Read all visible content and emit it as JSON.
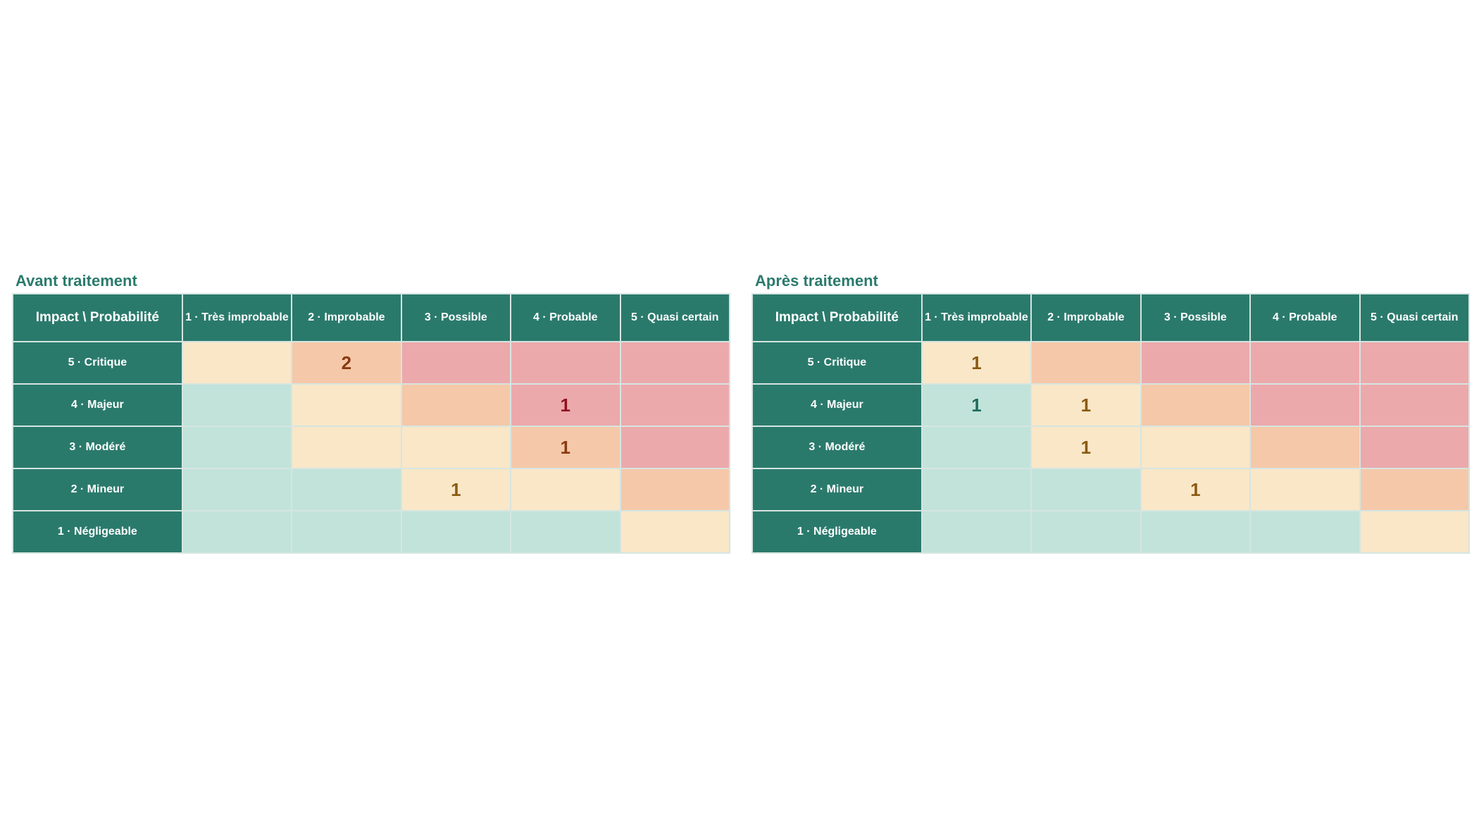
{
  "chart_data": [
    {
      "type": "heatmap",
      "title": "Avant traitement",
      "corner_label": "Impact \\ Probabilité",
      "columns": [
        "1 · Très improbable",
        "2 · Improbable",
        "3 · Possible",
        "4 · Probable",
        "5 · Quasi certain"
      ],
      "rows": [
        "5 · Critique",
        "4 · Majeur",
        "3 · Modéré",
        "2 · Mineur",
        "1 · Négligeable"
      ],
      "levels": [
        [
          "mod",
          "high",
          "crit",
          "crit",
          "crit"
        ],
        [
          "low",
          "mod",
          "high",
          "crit",
          "crit"
        ],
        [
          "low",
          "mod",
          "mod",
          "high",
          "crit"
        ],
        [
          "low",
          "low",
          "mod",
          "mod",
          "high"
        ],
        [
          "low",
          "low",
          "low",
          "low",
          "mod"
        ]
      ],
      "counts": [
        [
          "",
          "2",
          "",
          "",
          ""
        ],
        [
          "",
          "",
          "",
          "1",
          ""
        ],
        [
          "",
          "",
          "",
          "1",
          ""
        ],
        [
          "",
          "",
          "1",
          "",
          ""
        ],
        [
          "",
          "",
          "",
          "",
          ""
        ]
      ]
    },
    {
      "type": "heatmap",
      "title": "Après traitement",
      "corner_label": "Impact \\ Probabilité",
      "columns": [
        "1 · Très improbable",
        "2 · Improbable",
        "3 · Possible",
        "4 · Probable",
        "5 · Quasi certain"
      ],
      "rows": [
        "5 · Critique",
        "4 · Majeur",
        "3 · Modéré",
        "2 · Mineur",
        "1 · Négligeable"
      ],
      "levels": [
        [
          "mod",
          "high",
          "crit",
          "crit",
          "crit"
        ],
        [
          "low",
          "mod",
          "high",
          "crit",
          "crit"
        ],
        [
          "low",
          "mod",
          "mod",
          "high",
          "crit"
        ],
        [
          "low",
          "low",
          "mod",
          "mod",
          "high"
        ],
        [
          "low",
          "low",
          "low",
          "low",
          "mod"
        ]
      ],
      "counts": [
        [
          "1",
          "",
          "",
          "",
          ""
        ],
        [
          "1",
          "1",
          "",
          "",
          ""
        ],
        [
          "",
          "1",
          "",
          "",
          ""
        ],
        [
          "",
          "",
          "1",
          "",
          ""
        ],
        [
          "",
          "",
          "",
          "",
          ""
        ]
      ]
    }
  ],
  "colors": {
    "header_bg": "#2a7a6c",
    "low": "#c1e3da",
    "moderate": "#f9e7c8",
    "high": "#f5c8a9",
    "critical": "#eca9ab",
    "title": "#2a7a6c"
  }
}
